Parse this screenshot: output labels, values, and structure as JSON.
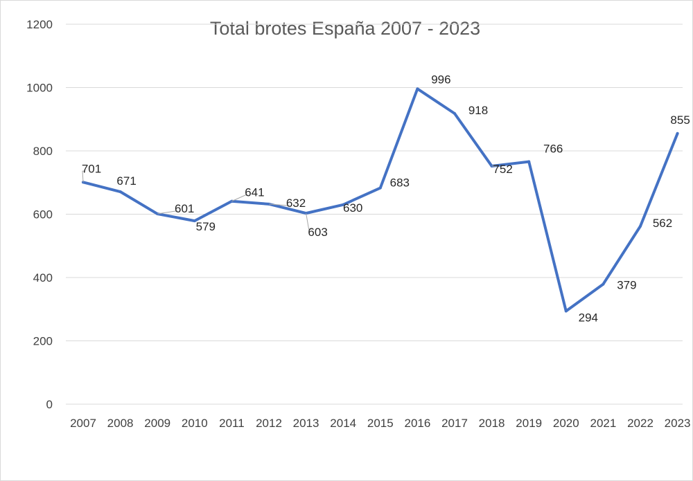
{
  "chart_data": {
    "type": "line",
    "title": "Total brotes España 2007 - 2023",
    "xlabel": "",
    "ylabel": "",
    "categories": [
      "2007",
      "2008",
      "2009",
      "2010",
      "2011",
      "2012",
      "2013",
      "2014",
      "2015",
      "2016",
      "2017",
      "2018",
      "2019",
      "2020",
      "2021",
      "2022",
      "2023"
    ],
    "series": [
      {
        "values": [
          701,
          671,
          601,
          579,
          641,
          632,
          603,
          630,
          683,
          996,
          918,
          752,
          766,
          294,
          379,
          562,
          855
        ],
        "color": "#4472c4"
      }
    ],
    "ylim": [
      0,
      1200
    ],
    "yticks": [
      "0",
      "200",
      "400",
      "600",
      "800",
      "1000",
      "1200"
    ],
    "data_labels": [
      "701",
      "671",
      "601",
      "579",
      "641",
      "632",
      "603",
      "630",
      "683",
      "996",
      "918",
      "752",
      "766",
      "294",
      "379",
      "562",
      "855"
    ],
    "grid": true,
    "legend": "none"
  }
}
